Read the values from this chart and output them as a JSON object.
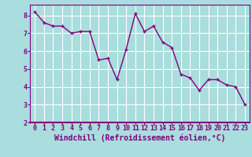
{
  "x": [
    0,
    1,
    2,
    3,
    4,
    5,
    6,
    7,
    8,
    9,
    10,
    11,
    12,
    13,
    14,
    15,
    16,
    17,
    18,
    19,
    20,
    21,
    22,
    23
  ],
  "y": [
    8.2,
    7.6,
    7.4,
    7.4,
    7.0,
    7.1,
    7.1,
    5.5,
    5.6,
    4.4,
    6.1,
    8.1,
    7.1,
    7.4,
    6.5,
    6.2,
    4.7,
    4.5,
    3.8,
    4.4,
    4.4,
    4.1,
    4.0,
    3.0
  ],
  "line_color": "#800080",
  "marker": "+",
  "marker_color": "#800080",
  "bg_color": "#aadddd",
  "grid_color": "#ffffff",
  "xlabel": "Windchill (Refroidissement éolien,°C)",
  "xlim_min": -0.5,
  "xlim_max": 23.5,
  "ylim_min": 2.0,
  "ylim_max": 8.6,
  "yticks": [
    2,
    3,
    4,
    5,
    6,
    7,
    8
  ],
  "xticks": [
    0,
    1,
    2,
    3,
    4,
    5,
    6,
    7,
    8,
    9,
    10,
    11,
    12,
    13,
    14,
    15,
    16,
    17,
    18,
    19,
    20,
    21,
    22,
    23
  ],
  "tick_color": "#800080",
  "label_color": "#800080",
  "spine_color": "#800080",
  "xlabel_fontsize": 7.0,
  "tick_fontsize": 6.0,
  "linewidth": 1.0,
  "markersize": 3.5
}
